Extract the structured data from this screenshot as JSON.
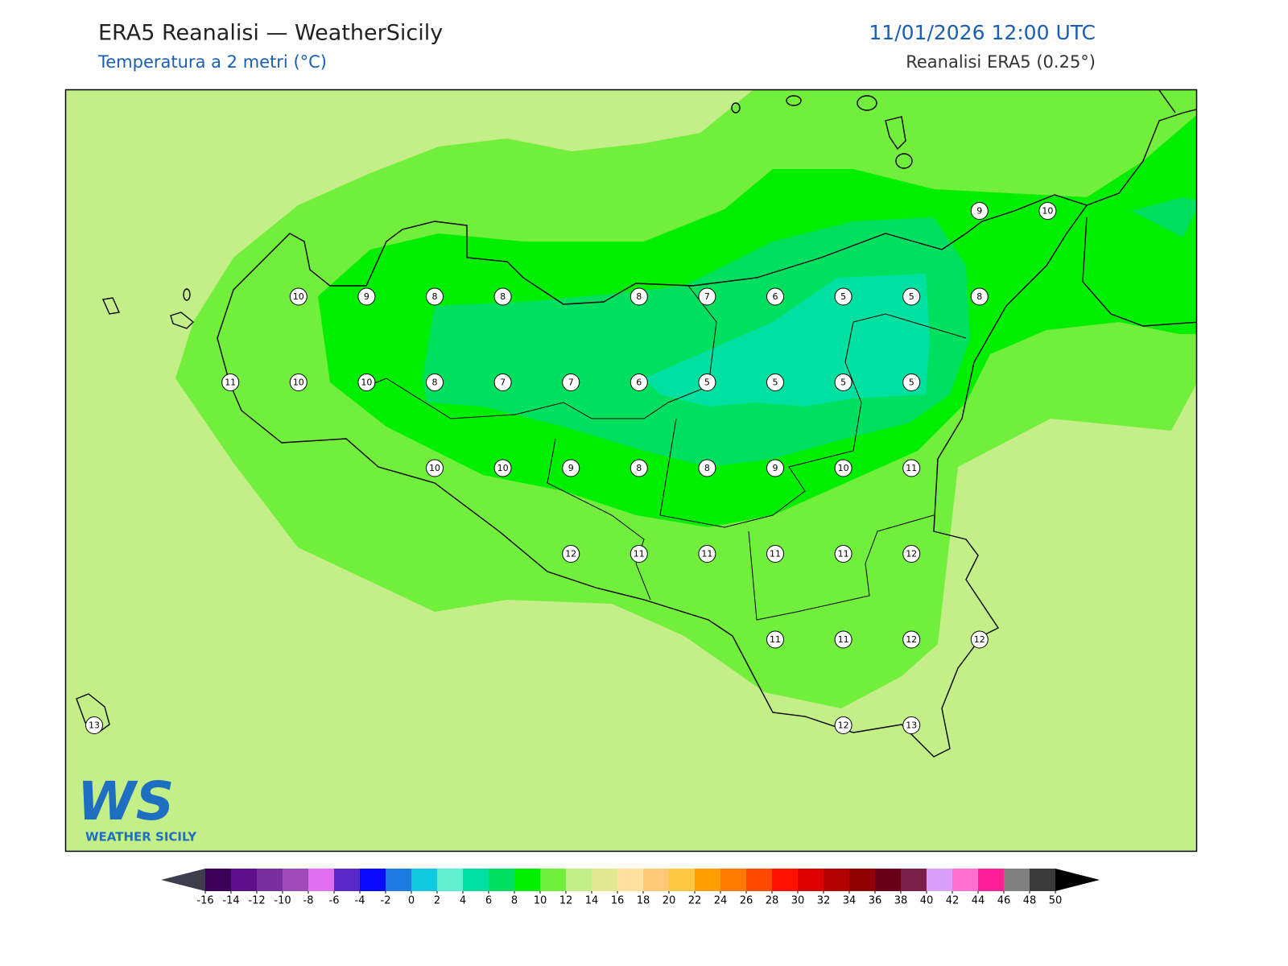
{
  "header": {
    "title": "ERA5 Reanalisi — WeatherSicily",
    "subtitle": "Temperatura a 2 metri (°C)",
    "datetime": "11/01/2026 12:00 UTC",
    "source": "Reanalisi ERA5 (0.25°)"
  },
  "logo": {
    "text": "WS",
    "caption": "WEATHER SICILY"
  },
  "stations": {
    "rows": [
      [
        null,
        null,
        null,
        null,
        null,
        null,
        null,
        null,
        null,
        null,
        null,
        null,
        null,
        9,
        10
      ],
      [
        null,
        null,
        null,
        10,
        9,
        8,
        8,
        null,
        8,
        7,
        6,
        5,
        5,
        8,
        null
      ],
      [
        null,
        null,
        11,
        10,
        10,
        8,
        7,
        7,
        6,
        5,
        5,
        5,
        5,
        null,
        null
      ],
      [
        null,
        null,
        null,
        null,
        null,
        10,
        10,
        9,
        8,
        8,
        9,
        10,
        11,
        null,
        null
      ],
      [
        null,
        null,
        null,
        null,
        null,
        null,
        null,
        12,
        11,
        11,
        11,
        11,
        12,
        null,
        null
      ],
      [
        null,
        null,
        null,
        null,
        null,
        null,
        null,
        null,
        null,
        null,
        11,
        11,
        12,
        12,
        null
      ],
      [
        13,
        null,
        null,
        null,
        null,
        null,
        null,
        null,
        null,
        null,
        null,
        12,
        13,
        null,
        null
      ]
    ]
  },
  "colorbar": {
    "ticks": [
      -16,
      -14,
      -12,
      -10,
      -8,
      -6,
      -4,
      -2,
      0,
      2,
      4,
      6,
      8,
      10,
      12,
      14,
      16,
      18,
      20,
      22,
      24,
      26,
      28,
      30,
      32,
      34,
      36,
      38,
      40,
      42,
      44,
      46,
      48,
      50
    ],
    "colors": [
      "#3a0058",
      "#5e0f8a",
      "#7a2fa0",
      "#9e4db8",
      "#e070f0",
      "#5a28c8",
      "#0a0aff",
      "#1f7be0",
      "#10c8e0",
      "#60f0d0",
      "#00e0a0",
      "#00e060",
      "#00ee00",
      "#72ee3c",
      "#c4ee88",
      "#e0e890",
      "#ffe0a0",
      "#ffc878",
      "#ffc840",
      "#ffa000",
      "#ff7800",
      "#ff4800",
      "#ff1000",
      "#dc0000",
      "#b40000",
      "#900000",
      "#6a0018",
      "#7a2048",
      "#d8a0f8",
      "#ff70d0",
      "#ff2098",
      "#808080",
      "#3a3a3a"
    ],
    "under": "#3d3d4d",
    "over": "#000000"
  }
}
